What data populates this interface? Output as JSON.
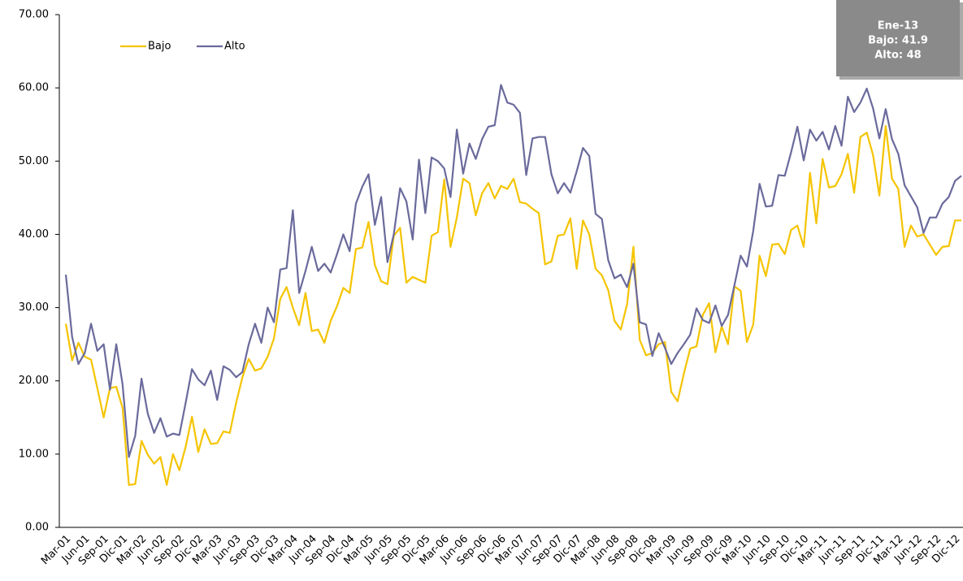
{
  "chart_data": {
    "type": "line",
    "categories": [
      "Mar-01",
      null,
      null,
      "Jun-01",
      null,
      null,
      "Sep-01",
      null,
      null,
      "Dic-01",
      null,
      null,
      "Mar-02",
      null,
      null,
      "Jun-02",
      null,
      null,
      "Sep-02",
      null,
      null,
      "Dic-02",
      null,
      null,
      "Mar-03",
      null,
      null,
      "Jun-03",
      null,
      null,
      "Sep-03",
      null,
      null,
      "Dic-03",
      null,
      null,
      "Mar-04",
      null,
      null,
      "Jun-04",
      null,
      null,
      "Sep-04",
      null,
      null,
      "Dic-04",
      null,
      null,
      "Mar-05",
      null,
      null,
      "Jun-05",
      null,
      null,
      "Sep-05",
      null,
      null,
      "Dic-05",
      null,
      null,
      "Mar-06",
      null,
      null,
      "Jun-06",
      null,
      null,
      "Sep-06",
      null,
      null,
      "Dic-06",
      null,
      null,
      "Mar-07",
      null,
      null,
      "Jun-07",
      null,
      null,
      "Sep-07",
      null,
      null,
      "Dic-07",
      null,
      null,
      "Mar-08",
      null,
      null,
      "Jun-08",
      null,
      null,
      "Sep-08",
      null,
      null,
      "Dic-08",
      null,
      null,
      "Mar-09",
      null,
      null,
      "Jun-09",
      null,
      null,
      "Sep-09",
      null,
      null,
      "Dic-09",
      null,
      null,
      "Mar-10",
      null,
      null,
      "Jun-10",
      null,
      null,
      "Sep-10",
      null,
      null,
      "Dic-10",
      null,
      null,
      "Mar-11",
      null,
      null,
      "Jun-11",
      null,
      null,
      "Sep-11",
      null,
      null,
      "Dic-11",
      null,
      null,
      "Mar-12",
      null,
      null,
      "Jun-12",
      null,
      null,
      "Sep-12",
      null,
      null,
      "Dic-12",
      null
    ],
    "series": [
      {
        "name": "Bajo",
        "color": "#f5c400",
        "values": [
          27.8,
          22.8,
          25.2,
          23.3,
          22.9,
          19,
          15,
          19,
          19.2,
          16.3,
          5.8,
          5.9,
          11.8,
          9.9,
          8.7,
          9.6,
          5.8,
          10,
          7.8,
          11,
          15.1,
          10.3,
          13.4,
          11.4,
          11.5,
          13.1,
          12.9,
          17,
          20.5,
          23,
          21.4,
          21.7,
          23.3,
          25.8,
          31.2,
          32.8,
          30,
          27.6,
          32,
          26.8,
          27,
          25.2,
          28.2,
          30.2,
          32.7,
          32,
          38,
          38.2,
          41.7,
          35.8,
          33.6,
          33.2,
          39.8,
          40.9,
          33.4,
          34.2,
          33.8,
          33.4,
          39.8,
          40.3,
          47.5,
          38.3,
          42.3,
          47.6,
          47,
          42.6,
          45.6,
          47,
          44.9,
          46.6,
          46.2,
          47.6,
          44.4,
          44.2,
          43.5,
          42.9,
          35.9,
          36.3,
          39.8,
          40,
          42.2,
          35.3,
          41.9,
          40,
          35.3,
          34.4,
          32.4,
          28.2,
          27,
          30.5,
          38.3,
          25.6,
          23.5,
          23.8,
          25,
          25.3,
          18.5,
          17.2,
          21,
          24.4,
          24.7,
          29,
          30.6,
          23.9,
          27.4,
          25,
          32.9,
          32.3,
          25.3,
          27.7,
          37.1,
          34.3,
          38.6,
          38.7,
          37.3,
          40.6,
          41.2,
          38.3,
          48.4,
          41.5,
          50.3,
          46.4,
          46.6,
          48.2,
          51,
          45.7,
          53.3,
          53.9,
          50.8,
          45.3,
          54.8,
          47.6,
          46.2,
          38.3,
          41.2,
          39.7,
          40,
          38.6,
          37.2,
          38.3,
          38.4,
          41.9,
          41.9
        ]
      },
      {
        "name": "Alto",
        "color": "#6a6a9c",
        "values": [
          34.5,
          26,
          22.3,
          23.8,
          27.8,
          24.1,
          25,
          18.8,
          25,
          19.5,
          9.6,
          12.5,
          20.3,
          15.5,
          12.9,
          14.9,
          12.4,
          12.8,
          12.6,
          17,
          21.6,
          20.2,
          19.4,
          21.4,
          17.4,
          22,
          21.5,
          20.5,
          21.2,
          25,
          27.8,
          25.2,
          30,
          28,
          35.2,
          35.4,
          43.3,
          32,
          35,
          38.3,
          35,
          36,
          34.8,
          37.3,
          40,
          37.7,
          44.2,
          46.5,
          48.2,
          41.3,
          45.1,
          36.2,
          40,
          46.3,
          44.5,
          39.3,
          50.2,
          42.9,
          50.5,
          50,
          49,
          45.1,
          54.3,
          48.3,
          52.4,
          50.3,
          53,
          54.7,
          54.9,
          60.4,
          58,
          57.7,
          56.6,
          48.1,
          53.1,
          53.3,
          53.3,
          48.2,
          45.6,
          47,
          45.7,
          48.6,
          51.8,
          50.7,
          42.8,
          42.1,
          36.5,
          34,
          34.5,
          32.8,
          36,
          28,
          27.7,
          23.4,
          26.5,
          24.5,
          22.3,
          23.8,
          25,
          26.3,
          29.9,
          28.3,
          27.9,
          30.3,
          27.5,
          29,
          33,
          37.1,
          35.6,
          40.5,
          46.9,
          43.8,
          43.9,
          48.1,
          48,
          51.2,
          54.7,
          50.1,
          54.3,
          52.8,
          54,
          51.6,
          54.8,
          52.1,
          58.8,
          56.7,
          58,
          59.9,
          57.2,
          53.1,
          57.1,
          53,
          51,
          46.7,
          45.2,
          43.7,
          40.2,
          42.3,
          42.3,
          44.2,
          45.1,
          47.3,
          48
        ]
      }
    ],
    "ylim": [
      0,
      70
    ],
    "yticks": [
      {
        "value": 0,
        "label": "0.00"
      },
      {
        "value": 10,
        "label": "10.00"
      },
      {
        "value": 20,
        "label": "20.00"
      },
      {
        "value": 30,
        "label": "30.00"
      },
      {
        "value": 40,
        "label": "40.00"
      },
      {
        "value": 50,
        "label": "50.00"
      },
      {
        "value": 60,
        "label": "60.00"
      },
      {
        "value": 70,
        "label": "70.00"
      }
    ],
    "grid": false,
    "legend": "top-left",
    "tooltip": {
      "title": "Ene-13",
      "lines": [
        "Bajo: 41.9",
        "Alto: 48"
      ]
    }
  }
}
